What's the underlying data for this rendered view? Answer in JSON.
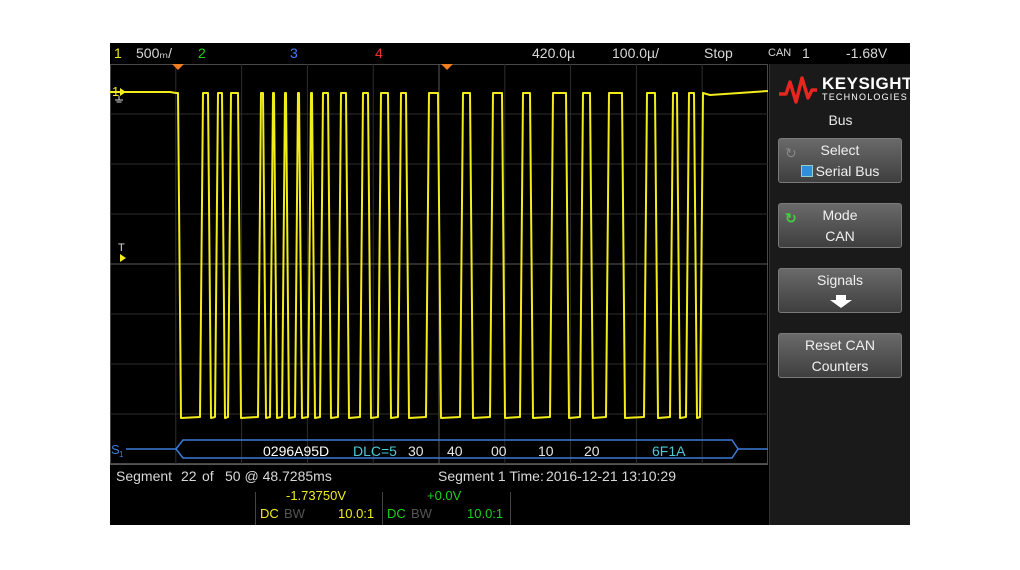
{
  "status_bar": {
    "ch1_num": "1",
    "ch1_scale": "500ₘ/",
    "ch2_num": "2",
    "ch3_num": "3",
    "ch4_num": "4",
    "horiz_position": "420.0µ",
    "time_scale": "100.0µ/",
    "run_state": "Stop",
    "trigger_type": "CAN",
    "trigger_source": "1",
    "trigger_level": "-1.68V"
  },
  "waveform": {
    "ch1_marker": "1",
    "trigger_marker": "T",
    "serial_marker": "S",
    "serial_marker_sub": "1",
    "decode": {
      "id": "0296A95D",
      "dlc": "DLC=5",
      "bytes": [
        "30",
        "40",
        "00",
        "10",
        "20"
      ],
      "crc": "6F1A"
    }
  },
  "segment_bar": {
    "label": "Segment",
    "current": "22",
    "of_label": "of",
    "total": "50 @ 48.7285ms",
    "time_label": "Segment 1 Time:",
    "time_value": "2016-12-21 13:10:29"
  },
  "channel_info": {
    "ch1": {
      "offset": "-1.73750V",
      "coupling": "DC",
      "bw": "BW",
      "probe": "10.0:1"
    },
    "ch2": {
      "offset": "+0.0V",
      "coupling": "DC",
      "bw": "BW",
      "probe": "10.0:1"
    }
  },
  "softkey_panel": {
    "brand": "KEYSIGHT",
    "brand_sub": "TECHNOLOGIES",
    "menu_title": "Bus",
    "keys": [
      {
        "line1": "Select",
        "line2": "Serial Bus"
      },
      {
        "line1": "Mode",
        "line2": "CAN"
      },
      {
        "line1": "Signals",
        "line2": ""
      },
      {
        "line1": "Reset CAN",
        "line2": "Counters"
      }
    ]
  },
  "colors": {
    "ch1": "#f2ec1a",
    "ch2": "#19d219",
    "ch3": "#4b74ff",
    "ch4": "#f03030",
    "bus": "#3c7bd8",
    "decode_id": "#ffffff",
    "decode_dlc": "#4ec8d8",
    "decode_crc": "#4ec8d8"
  },
  "icons": [
    "keysight-wave-logo",
    "knob-icon",
    "checkbox-icon",
    "arrow-down-icon",
    "ground-icon",
    "trigger-marker-icon"
  ]
}
